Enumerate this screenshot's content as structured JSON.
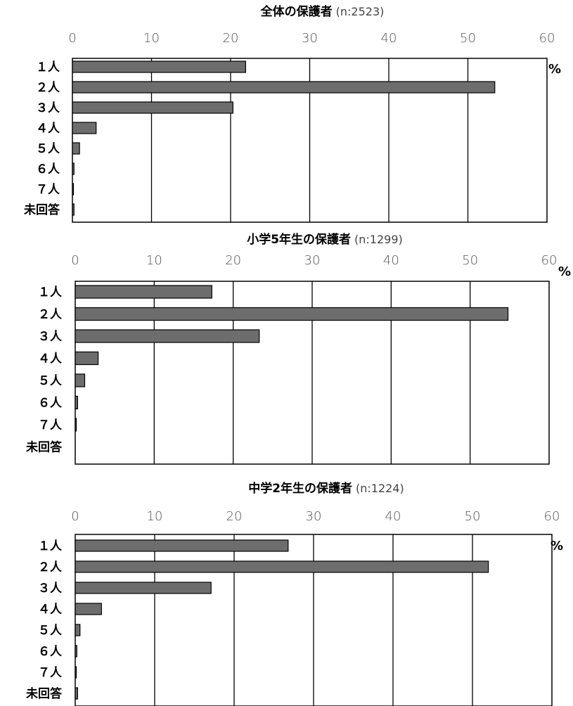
{
  "chart_data": [
    {
      "type": "bar",
      "orientation": "horizontal",
      "title": "全体の保護者",
      "title_n": "(n:2523)",
      "unit": "%",
      "xlim": [
        0,
        60
      ],
      "ticks": [
        "0",
        "10",
        "20",
        "30",
        "40",
        "50",
        "60"
      ],
      "categories": [
        "１人",
        "２人",
        "３人",
        "４人",
        "５人",
        "６人",
        "７人",
        "未回答"
      ],
      "values": [
        21.9,
        53.4,
        20.3,
        3.0,
        0.9,
        0.2,
        0.1,
        0.2
      ],
      "bar_color": "#6d6d6d",
      "grid": true
    },
    {
      "type": "bar",
      "orientation": "horizontal",
      "title": "小学5年生の保護者",
      "title_n": "(n:1299)",
      "unit": "%",
      "xlim": [
        0,
        60
      ],
      "ticks": [
        "0",
        "10",
        "20",
        "30",
        "40",
        "50",
        "60"
      ],
      "categories": [
        "１人",
        "２人",
        "３人",
        "４人",
        "５人",
        "６人",
        "７人",
        "未回答"
      ],
      "values": [
        17.3,
        54.8,
        23.3,
        2.9,
        1.2,
        0.3,
        0.1,
        0.0
      ],
      "bar_color": "#6d6d6d",
      "grid": true
    },
    {
      "type": "bar",
      "orientation": "horizontal",
      "title": "中学2年生の保護者",
      "title_n": "(n:1224)",
      "unit": "%",
      "xlim": [
        0,
        60
      ],
      "ticks": [
        "0",
        "10",
        "20",
        "30",
        "40",
        "50",
        "60"
      ],
      "categories": [
        "１人",
        "２人",
        "３人",
        "４人",
        "５人",
        "６人",
        "７人",
        "未回答"
      ],
      "values": [
        26.8,
        52.0,
        17.1,
        3.3,
        0.6,
        0.2,
        0.1,
        0.3
      ],
      "bar_color": "#6d6d6d",
      "grid": true
    }
  ]
}
